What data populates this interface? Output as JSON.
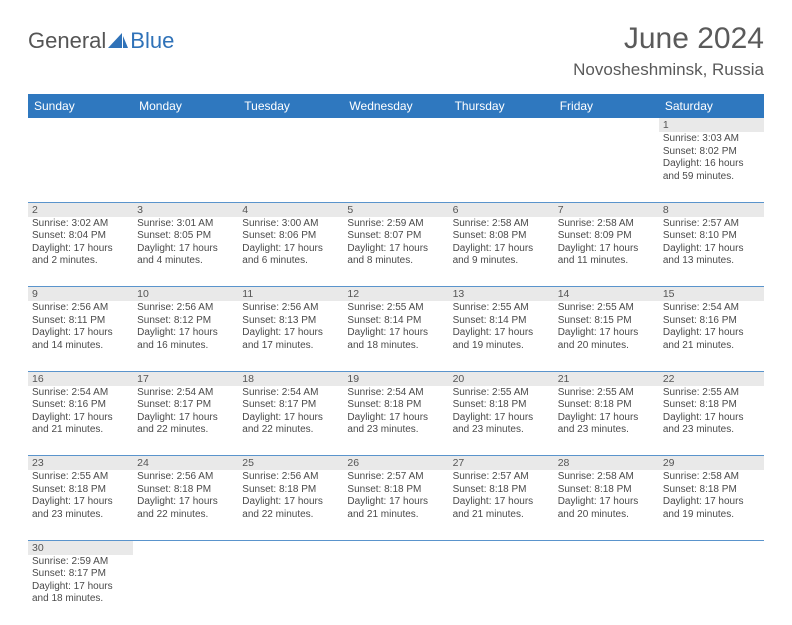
{
  "brand": {
    "part1": "General",
    "part2": "Blue"
  },
  "title": "June 2024",
  "location": "Novosheshminsk, Russia",
  "colors": {
    "header_bg": "#2f78bf",
    "header_text": "#ffffff",
    "daynum_bg": "#e9e9e9",
    "row_divider": "#5a94cc",
    "text": "#4a4a4a",
    "brand_blue": "#2f72b8"
  },
  "weekdays": [
    "Sunday",
    "Monday",
    "Tuesday",
    "Wednesday",
    "Thursday",
    "Friday",
    "Saturday"
  ],
  "weeks": [
    [
      {
        "num": "",
        "lines": []
      },
      {
        "num": "",
        "lines": []
      },
      {
        "num": "",
        "lines": []
      },
      {
        "num": "",
        "lines": []
      },
      {
        "num": "",
        "lines": []
      },
      {
        "num": "",
        "lines": []
      },
      {
        "num": "1",
        "lines": [
          "Sunrise: 3:03 AM",
          "Sunset: 8:02 PM",
          "Daylight: 16 hours and 59 minutes."
        ]
      }
    ],
    [
      {
        "num": "2",
        "lines": [
          "Sunrise: 3:02 AM",
          "Sunset: 8:04 PM",
          "Daylight: 17 hours and 2 minutes."
        ]
      },
      {
        "num": "3",
        "lines": [
          "Sunrise: 3:01 AM",
          "Sunset: 8:05 PM",
          "Daylight: 17 hours and 4 minutes."
        ]
      },
      {
        "num": "4",
        "lines": [
          "Sunrise: 3:00 AM",
          "Sunset: 8:06 PM",
          "Daylight: 17 hours and 6 minutes."
        ]
      },
      {
        "num": "5",
        "lines": [
          "Sunrise: 2:59 AM",
          "Sunset: 8:07 PM",
          "Daylight: 17 hours and 8 minutes."
        ]
      },
      {
        "num": "6",
        "lines": [
          "Sunrise: 2:58 AM",
          "Sunset: 8:08 PM",
          "Daylight: 17 hours and 9 minutes."
        ]
      },
      {
        "num": "7",
        "lines": [
          "Sunrise: 2:58 AM",
          "Sunset: 8:09 PM",
          "Daylight: 17 hours and 11 minutes."
        ]
      },
      {
        "num": "8",
        "lines": [
          "Sunrise: 2:57 AM",
          "Sunset: 8:10 PM",
          "Daylight: 17 hours and 13 minutes."
        ]
      }
    ],
    [
      {
        "num": "9",
        "lines": [
          "Sunrise: 2:56 AM",
          "Sunset: 8:11 PM",
          "Daylight: 17 hours and 14 minutes."
        ]
      },
      {
        "num": "10",
        "lines": [
          "Sunrise: 2:56 AM",
          "Sunset: 8:12 PM",
          "Daylight: 17 hours and 16 minutes."
        ]
      },
      {
        "num": "11",
        "lines": [
          "Sunrise: 2:56 AM",
          "Sunset: 8:13 PM",
          "Daylight: 17 hours and 17 minutes."
        ]
      },
      {
        "num": "12",
        "lines": [
          "Sunrise: 2:55 AM",
          "Sunset: 8:14 PM",
          "Daylight: 17 hours and 18 minutes."
        ]
      },
      {
        "num": "13",
        "lines": [
          "Sunrise: 2:55 AM",
          "Sunset: 8:14 PM",
          "Daylight: 17 hours and 19 minutes."
        ]
      },
      {
        "num": "14",
        "lines": [
          "Sunrise: 2:55 AM",
          "Sunset: 8:15 PM",
          "Daylight: 17 hours and 20 minutes."
        ]
      },
      {
        "num": "15",
        "lines": [
          "Sunrise: 2:54 AM",
          "Sunset: 8:16 PM",
          "Daylight: 17 hours and 21 minutes."
        ]
      }
    ],
    [
      {
        "num": "16",
        "lines": [
          "Sunrise: 2:54 AM",
          "Sunset: 8:16 PM",
          "Daylight: 17 hours and 21 minutes."
        ]
      },
      {
        "num": "17",
        "lines": [
          "Sunrise: 2:54 AM",
          "Sunset: 8:17 PM",
          "Daylight: 17 hours and 22 minutes."
        ]
      },
      {
        "num": "18",
        "lines": [
          "Sunrise: 2:54 AM",
          "Sunset: 8:17 PM",
          "Daylight: 17 hours and 22 minutes."
        ]
      },
      {
        "num": "19",
        "lines": [
          "Sunrise: 2:54 AM",
          "Sunset: 8:18 PM",
          "Daylight: 17 hours and 23 minutes."
        ]
      },
      {
        "num": "20",
        "lines": [
          "Sunrise: 2:55 AM",
          "Sunset: 8:18 PM",
          "Daylight: 17 hours and 23 minutes."
        ]
      },
      {
        "num": "21",
        "lines": [
          "Sunrise: 2:55 AM",
          "Sunset: 8:18 PM",
          "Daylight: 17 hours and 23 minutes."
        ]
      },
      {
        "num": "22",
        "lines": [
          "Sunrise: 2:55 AM",
          "Sunset: 8:18 PM",
          "Daylight: 17 hours and 23 minutes."
        ]
      }
    ],
    [
      {
        "num": "23",
        "lines": [
          "Sunrise: 2:55 AM",
          "Sunset: 8:18 PM",
          "Daylight: 17 hours and 23 minutes."
        ]
      },
      {
        "num": "24",
        "lines": [
          "Sunrise: 2:56 AM",
          "Sunset: 8:18 PM",
          "Daylight: 17 hours and 22 minutes."
        ]
      },
      {
        "num": "25",
        "lines": [
          "Sunrise: 2:56 AM",
          "Sunset: 8:18 PM",
          "Daylight: 17 hours and 22 minutes."
        ]
      },
      {
        "num": "26",
        "lines": [
          "Sunrise: 2:57 AM",
          "Sunset: 8:18 PM",
          "Daylight: 17 hours and 21 minutes."
        ]
      },
      {
        "num": "27",
        "lines": [
          "Sunrise: 2:57 AM",
          "Sunset: 8:18 PM",
          "Daylight: 17 hours and 21 minutes."
        ]
      },
      {
        "num": "28",
        "lines": [
          "Sunrise: 2:58 AM",
          "Sunset: 8:18 PM",
          "Daylight: 17 hours and 20 minutes."
        ]
      },
      {
        "num": "29",
        "lines": [
          "Sunrise: 2:58 AM",
          "Sunset: 8:18 PM",
          "Daylight: 17 hours and 19 minutes."
        ]
      }
    ],
    [
      {
        "num": "30",
        "lines": [
          "Sunrise: 2:59 AM",
          "Sunset: 8:17 PM",
          "Daylight: 17 hours and 18 minutes."
        ]
      },
      {
        "num": "",
        "lines": []
      },
      {
        "num": "",
        "lines": []
      },
      {
        "num": "",
        "lines": []
      },
      {
        "num": "",
        "lines": []
      },
      {
        "num": "",
        "lines": []
      },
      {
        "num": "",
        "lines": []
      }
    ]
  ]
}
